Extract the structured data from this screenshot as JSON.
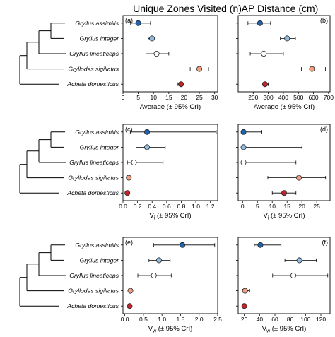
{
  "column_titles": [
    "Unique Zones Visited (n)",
    "AP Distance (cm)"
  ],
  "species": [
    "Gryllus assimilis",
    "Gryllus integer",
    "Gryllus lineaticeps",
    "Gryllodes sigillatus",
    "Acheta domesticus"
  ],
  "colors": {
    "Gryllus assimilis": "#1f63ad",
    "Gryllus integer": "#92bde0",
    "Gryllus lineaticeps": "#ffffff",
    "Gryllodes sigillatus": "#f0a083",
    "Acheta domesticus": "#c0252a"
  },
  "chart_data": [
    {
      "type": "scatter",
      "panel": "(a)",
      "xlabel": "Average (± 95% CrI)",
      "xlim": [
        0,
        31
      ],
      "xticks": [
        "0",
        "5",
        "10",
        "15",
        "20",
        "25",
        "30"
      ],
      "xtick_values": [
        0,
        5,
        10,
        15,
        20,
        25,
        30
      ],
      "series": [
        {
          "name": "Gryllus assimilis",
          "x": 5,
          "lo": 2.5,
          "hi": 9
        },
        {
          "name": "Gryllus integer",
          "x": 9.5,
          "lo": 8.3,
          "hi": 10.5
        },
        {
          "name": "Gryllus lineaticeps",
          "x": 11,
          "lo": 7.5,
          "hi": 15
        },
        {
          "name": "Gryllodes sigillatus",
          "x": 25,
          "lo": 22,
          "hi": 28
        },
        {
          "name": "Acheta domesticus",
          "x": 19,
          "lo": 18,
          "hi": 20
        }
      ]
    },
    {
      "type": "scatter",
      "panel": "(b)",
      "xlabel": "Average (± 95% CrI)",
      "xlim": [
        100,
        710
      ],
      "xticks": [
        "200",
        "300",
        "400",
        "500",
        "600",
        "700"
      ],
      "xtick_values": [
        200,
        300,
        400,
        500,
        600,
        700
      ],
      "series": [
        {
          "name": "Gryllus assimilis",
          "x": 245,
          "lo": 165,
          "hi": 315
        },
        {
          "name": "Gryllus integer",
          "x": 425,
          "lo": 380,
          "hi": 480
        },
        {
          "name": "Gryllus lineaticeps",
          "x": 270,
          "lo": 180,
          "hi": 400
        },
        {
          "name": "Gryllodes sigillatus",
          "x": 590,
          "lo": 520,
          "hi": 680
        },
        {
          "name": "Acheta domesticus",
          "x": 278,
          "lo": 265,
          "hi": 300
        }
      ]
    },
    {
      "type": "scatter",
      "panel": "(c)",
      "xlabel": "Vi (± 95% CrI)",
      "xlim": [
        0,
        1.3
      ],
      "xticks": [
        "0.0",
        "0.2",
        "0.4",
        "0.6",
        "0.8",
        "1.0",
        "1.2"
      ],
      "xtick_values": [
        0,
        0.2,
        0.4,
        0.6,
        0.8,
        1.0,
        1.2
      ],
      "series": [
        {
          "name": "Gryllus assimilis",
          "x": 0.33,
          "lo": 0.1,
          "hi": 1.28
        },
        {
          "name": "Gryllus integer",
          "x": 0.33,
          "lo": 0.18,
          "hi": 0.58
        },
        {
          "name": "Gryllus lineaticeps",
          "x": 0.15,
          "lo": 0.06,
          "hi": 0.55
        },
        {
          "name": "Gryllodes sigillatus",
          "x": 0.08,
          "lo": 0.05,
          "hi": 0.11
        },
        {
          "name": "Acheta domesticus",
          "x": 0.06,
          "lo": 0.05,
          "hi": 0.08
        }
      ]
    },
    {
      "type": "scatter",
      "panel": "(d)",
      "xlabel": "Vi (± 95% CrI)",
      "xlim": [
        -1.5,
        29.5
      ],
      "xticks": [
        "0",
        "5",
        "10",
        "15",
        "20",
        "25"
      ],
      "xtick_values": [
        0,
        5,
        10,
        15,
        20,
        25
      ],
      "series": [
        {
          "name": "Gryllus assimilis",
          "x": 0.3,
          "lo": 0,
          "hi": 6.5
        },
        {
          "name": "Gryllus integer",
          "x": 0.3,
          "lo": 0,
          "hi": 20
        },
        {
          "name": "Gryllus lineaticeps",
          "x": 0.3,
          "lo": 0,
          "hi": 18
        },
        {
          "name": "Gryllodes sigillatus",
          "x": 19,
          "lo": 8.5,
          "hi": 28
        },
        {
          "name": "Acheta domesticus",
          "x": 14,
          "lo": 10,
          "hi": 18
        }
      ]
    },
    {
      "type": "scatter",
      "panel": "(e)",
      "xlabel": "Vw (± 95% CrI)",
      "xlim": [
        -0.05,
        2.5
      ],
      "xticks": [
        "0.0",
        "0.5",
        "1.0",
        "1.5",
        "2.0",
        "2.5"
      ],
      "xtick_values": [
        0,
        0.5,
        1.0,
        1.5,
        2.0,
        2.5
      ],
      "series": [
        {
          "name": "Gryllus assimilis",
          "x": 1.55,
          "lo": 0.78,
          "hi": 2.42
        },
        {
          "name": "Gryllus integer",
          "x": 0.92,
          "lo": 0.65,
          "hi": 1.22
        },
        {
          "name": "Gryllus lineaticeps",
          "x": 0.78,
          "lo": 0.35,
          "hi": 1.25
        },
        {
          "name": "Gryllodes sigillatus",
          "x": 0.15,
          "lo": 0.1,
          "hi": 0.2
        },
        {
          "name": "Acheta domesticus",
          "x": 0.13,
          "lo": 0.1,
          "hi": 0.16
        }
      ]
    },
    {
      "type": "scatter",
      "panel": "(f)",
      "xlabel": "Vw (± 95% CrI)",
      "xlim": [
        12,
        132
      ],
      "xticks": [
        "20",
        "40",
        "60",
        "80",
        "100",
        "120"
      ],
      "xtick_values": [
        20,
        40,
        60,
        80,
        100,
        120
      ],
      "series": [
        {
          "name": "Gryllus assimilis",
          "x": 41,
          "lo": 33,
          "hi": 68
        },
        {
          "name": "Gryllus integer",
          "x": 92,
          "lo": 73,
          "hi": 114
        },
        {
          "name": "Gryllus lineaticeps",
          "x": 84,
          "lo": 57,
          "hi": 129
        },
        {
          "name": "Gryllodes sigillatus",
          "x": 21,
          "lo": 18,
          "hi": 27
        },
        {
          "name": "Acheta domesticus",
          "x": 20,
          "lo": 18,
          "hi": 22
        }
      ]
    }
  ]
}
